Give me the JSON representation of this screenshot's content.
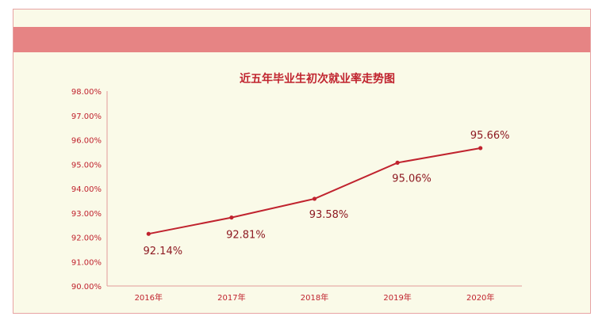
{
  "chart_data": {
    "type": "line",
    "title": "近五年毕业生初次就业率走势图",
    "categories": [
      "2016年",
      "2017年",
      "2018年",
      "2019年",
      "2020年"
    ],
    "series": [
      {
        "values": [
          92.14,
          92.81,
          93.58,
          95.06,
          95.66
        ]
      }
    ],
    "data_labels": [
      "92.14%",
      "92.81%",
      "93.58%",
      "95.06%",
      "95.66%"
    ],
    "y_ticks": [
      "90.00%",
      "91.00%",
      "92.00%",
      "93.00%",
      "94.00%",
      "95.00%",
      "96.00%",
      "97.00%",
      "98.00%"
    ],
    "ylim": [
      90,
      98
    ],
    "grid": false,
    "colors": {
      "line": "#c0232e",
      "banner": "#e68484",
      "background": "#fafae8"
    }
  }
}
